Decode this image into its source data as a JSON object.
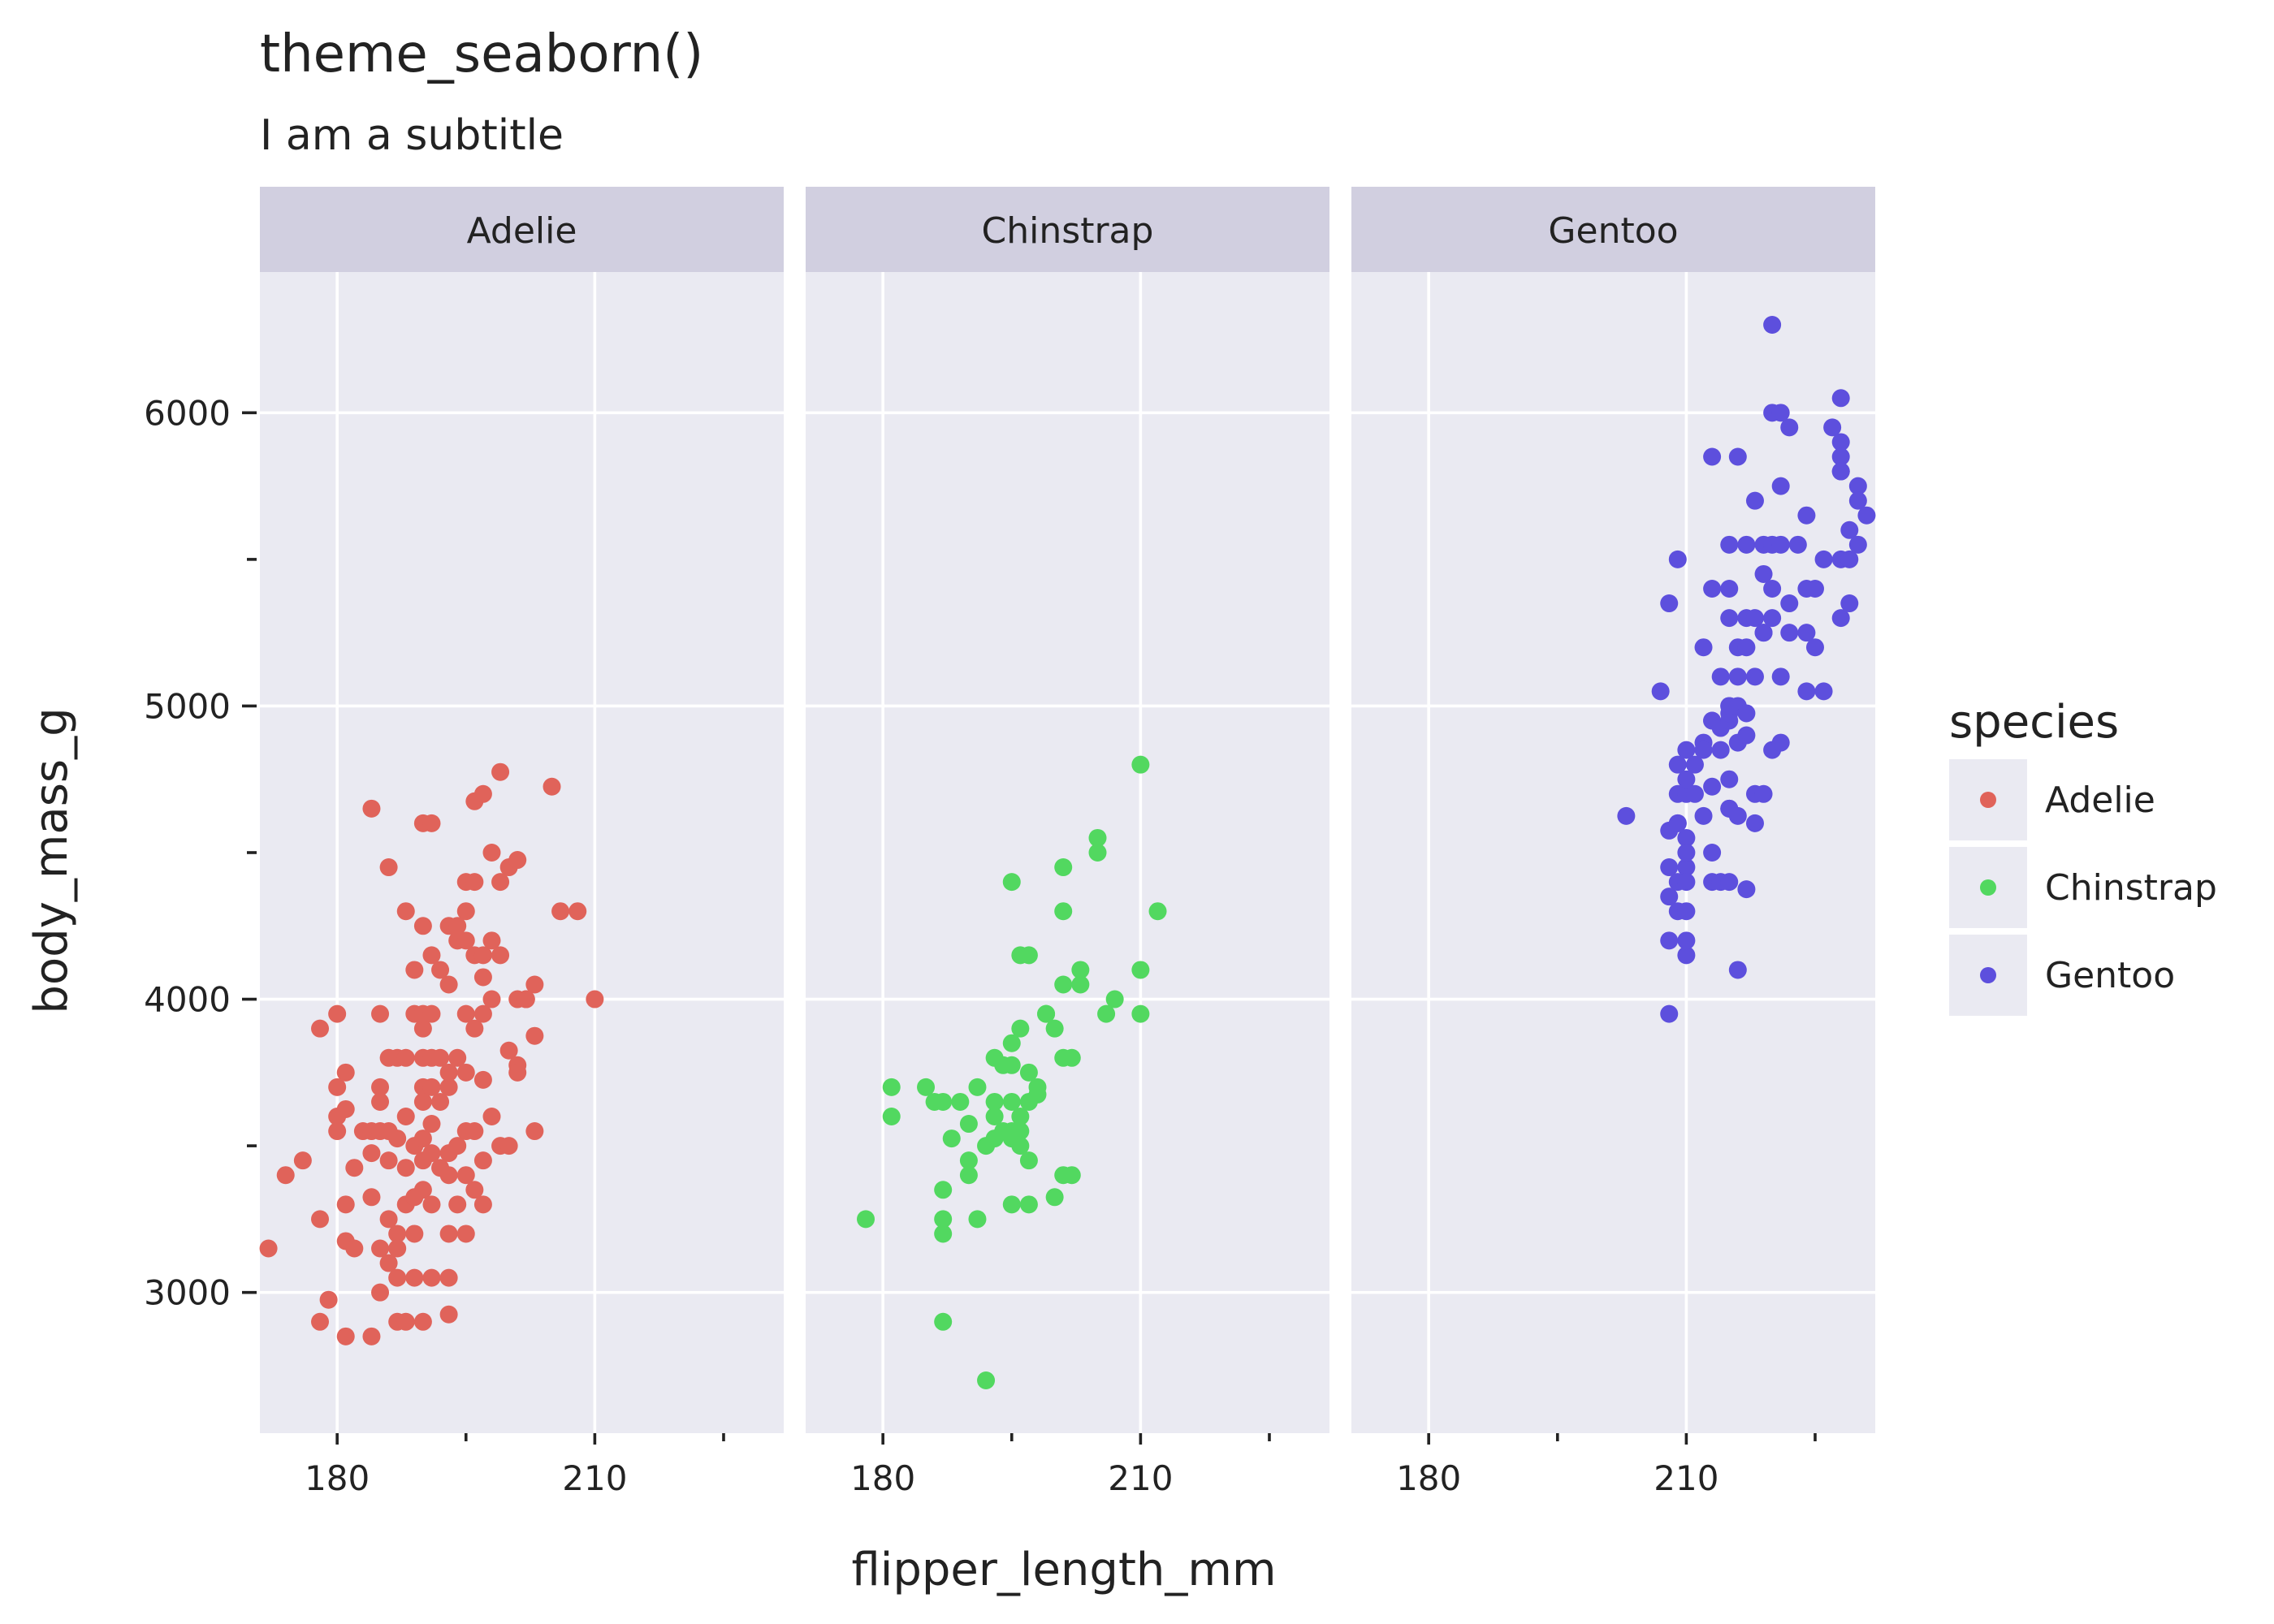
{
  "chart_data": {
    "type": "scatter",
    "title": "theme_seaborn()",
    "subtitle": "I am a subtitle",
    "xlabel": "flipper_length_mm",
    "ylabel": "body_mass_g",
    "xlim": [
      171,
      232
    ],
    "ylim": [
      2520,
      6480
    ],
    "x_ticks": [
      180,
      210
    ],
    "x_minor_ticks": [
      195,
      225
    ],
    "y_ticks": [
      3000,
      4000,
      5000,
      6000
    ],
    "y_minor_ticks": [
      3500,
      4500,
      5500
    ],
    "facets": [
      "Adelie",
      "Chinstrap",
      "Gentoo"
    ],
    "legend": {
      "title": "species",
      "position": "right",
      "entries": [
        "Adelie",
        "Chinstrap",
        "Gentoo"
      ]
    },
    "series": [
      {
        "name": "Adelie",
        "color": "#e0635a",
        "points": [
          [
            172,
            3150
          ],
          [
            174,
            3400
          ],
          [
            176,
            3450
          ],
          [
            178,
            3250
          ],
          [
            178,
            2900
          ],
          [
            178,
            3900
          ],
          [
            179,
            2975
          ],
          [
            180,
            3550
          ],
          [
            180,
            3600
          ],
          [
            180,
            3700
          ],
          [
            180,
            3950
          ],
          [
            181,
            3625
          ],
          [
            181,
            3750
          ],
          [
            181,
            3300
          ],
          [
            181,
            3175
          ],
          [
            181,
            2850
          ],
          [
            182,
            3150
          ],
          [
            182,
            3425
          ],
          [
            183,
            3550
          ],
          [
            184,
            3550
          ],
          [
            184,
            2850
          ],
          [
            184,
            4650
          ],
          [
            184,
            3325
          ],
          [
            184,
            3475
          ],
          [
            185,
            3700
          ],
          [
            185,
            3650
          ],
          [
            185,
            3150
          ],
          [
            185,
            3950
          ],
          [
            185,
            3550
          ],
          [
            185,
            3000
          ],
          [
            186,
            3800
          ],
          [
            186,
            3450
          ],
          [
            186,
            3100
          ],
          [
            186,
            3550
          ],
          [
            186,
            4450
          ],
          [
            186,
            3250
          ],
          [
            187,
            3200
          ],
          [
            187,
            3800
          ],
          [
            187,
            3525
          ],
          [
            187,
            3050
          ],
          [
            187,
            3150
          ],
          [
            187,
            2900
          ],
          [
            188,
            3300
          ],
          [
            188,
            3800
          ],
          [
            188,
            3600
          ],
          [
            188,
            2900
          ],
          [
            188,
            4300
          ],
          [
            188,
            3425
          ],
          [
            189,
            3200
          ],
          [
            189,
            3500
          ],
          [
            189,
            3050
          ],
          [
            189,
            4100
          ],
          [
            189,
            3950
          ],
          [
            189,
            3325
          ],
          [
            190,
            3800
          ],
          [
            190,
            3450
          ],
          [
            190,
            4600
          ],
          [
            190,
            3700
          ],
          [
            190,
            3900
          ],
          [
            190,
            4250
          ],
          [
            190,
            3950
          ],
          [
            190,
            3350
          ],
          [
            190,
            2900
          ],
          [
            190,
            3525
          ],
          [
            190,
            3650
          ],
          [
            191,
            3050
          ],
          [
            191,
            3700
          ],
          [
            191,
            3475
          ],
          [
            191,
            3950
          ],
          [
            191,
            3575
          ],
          [
            191,
            3800
          ],
          [
            191,
            4600
          ],
          [
            191,
            4150
          ],
          [
            191,
            3300
          ],
          [
            192,
            3425
          ],
          [
            192,
            4100
          ],
          [
            192,
            3650
          ],
          [
            192,
            3800
          ],
          [
            193,
            3050
          ],
          [
            193,
            3700
          ],
          [
            193,
            3475
          ],
          [
            193,
            3200
          ],
          [
            193,
            3400
          ],
          [
            193,
            4050
          ],
          [
            193,
            2925
          ],
          [
            193,
            4250
          ],
          [
            193,
            3750
          ],
          [
            194,
            3300
          ],
          [
            194,
            4200
          ],
          [
            194,
            3500
          ],
          [
            194,
            3800
          ],
          [
            194,
            4250
          ],
          [
            195,
            3750
          ],
          [
            195,
            3200
          ],
          [
            195,
            4400
          ],
          [
            195,
            4300
          ],
          [
            195,
            4200
          ],
          [
            195,
            3550
          ],
          [
            195,
            3400
          ],
          [
            195,
            3950
          ],
          [
            196,
            4675
          ],
          [
            196,
            3550
          ],
          [
            196,
            4150
          ],
          [
            196,
            3350
          ],
          [
            196,
            3900
          ],
          [
            196,
            4400
          ],
          [
            197,
            3300
          ],
          [
            197,
            4700
          ],
          [
            197,
            4150
          ],
          [
            197,
            4075
          ],
          [
            197,
            3950
          ],
          [
            197,
            3725
          ],
          [
            197,
            3450
          ],
          [
            198,
            4000
          ],
          [
            198,
            3600
          ],
          [
            198,
            4500
          ],
          [
            198,
            4200
          ],
          [
            199,
            4775
          ],
          [
            199,
            3500
          ],
          [
            199,
            4400
          ],
          [
            199,
            4150
          ],
          [
            200,
            4450
          ],
          [
            200,
            3825
          ],
          [
            200,
            3500
          ],
          [
            201,
            4000
          ],
          [
            201,
            4475
          ],
          [
            201,
            3775
          ],
          [
            201,
            3750
          ],
          [
            202,
            4000
          ],
          [
            202,
            4000
          ],
          [
            203,
            3875
          ],
          [
            203,
            4050
          ],
          [
            203,
            3550
          ],
          [
            205,
            4725
          ],
          [
            206,
            4300
          ],
          [
            208,
            4300
          ],
          [
            210,
            4000
          ]
        ]
      },
      {
        "name": "Chinstrap",
        "color": "#52d860",
        "points": [
          [
            178,
            3250
          ],
          [
            181,
            3700
          ],
          [
            181,
            3600
          ],
          [
            185,
            3700
          ],
          [
            186,
            3650
          ],
          [
            187,
            3200
          ],
          [
            187,
            3250
          ],
          [
            187,
            3350
          ],
          [
            187,
            2900
          ],
          [
            187,
            3650
          ],
          [
            188,
            3525
          ],
          [
            189,
            3650
          ],
          [
            190,
            3575
          ],
          [
            190,
            3400
          ],
          [
            190,
            3450
          ],
          [
            191,
            3700
          ],
          [
            191,
            3250
          ],
          [
            192,
            3500
          ],
          [
            192,
            2700
          ],
          [
            193,
            3650
          ],
          [
            193,
            3600
          ],
          [
            193,
            3800
          ],
          [
            193,
            3525
          ],
          [
            194,
            3775
          ],
          [
            194,
            3550
          ],
          [
            195,
            3550
          ],
          [
            195,
            3525
          ],
          [
            195,
            3850
          ],
          [
            195,
            3650
          ],
          [
            195,
            3300
          ],
          [
            195,
            3775
          ],
          [
            195,
            4400
          ],
          [
            196,
            3600
          ],
          [
            196,
            3500
          ],
          [
            196,
            3550
          ],
          [
            196,
            3900
          ],
          [
            196,
            4150
          ],
          [
            197,
            3650
          ],
          [
            197,
            3750
          ],
          [
            197,
            3450
          ],
          [
            197,
            4150
          ],
          [
            197,
            3300
          ],
          [
            198,
            3700
          ],
          [
            198,
            3675
          ],
          [
            199,
            3950
          ],
          [
            199,
            3950
          ],
          [
            200,
            3900
          ],
          [
            200,
            3325
          ],
          [
            201,
            3800
          ],
          [
            201,
            3400
          ],
          [
            201,
            4450
          ],
          [
            201,
            4050
          ],
          [
            201,
            4300
          ],
          [
            202,
            3800
          ],
          [
            202,
            3400
          ],
          [
            203,
            4050
          ],
          [
            203,
            4100
          ],
          [
            205,
            4550
          ],
          [
            205,
            4500
          ],
          [
            206,
            3950
          ],
          [
            207,
            4000
          ],
          [
            210,
            4800
          ],
          [
            210,
            4100
          ],
          [
            210,
            3950
          ],
          [
            212,
            4300
          ]
        ]
      },
      {
        "name": "Gentoo",
        "color": "#5d4fdd",
        "points": [
          [
            203,
            4625
          ],
          [
            207,
            5050
          ],
          [
            208,
            3950
          ],
          [
            208,
            4575
          ],
          [
            208,
            4450
          ],
          [
            208,
            4200
          ],
          [
            208,
            4350
          ],
          [
            208,
            5350
          ],
          [
            209,
            4300
          ],
          [
            209,
            4600
          ],
          [
            209,
            4400
          ],
          [
            209,
            4800
          ],
          [
            209,
            4700
          ],
          [
            209,
            5500
          ],
          [
            209,
            4600
          ],
          [
            210,
            4150
          ],
          [
            210,
            4450
          ],
          [
            210,
            4550
          ],
          [
            210,
            4200
          ],
          [
            210,
            4300
          ],
          [
            210,
            4700
          ],
          [
            210,
            4400
          ],
          [
            210,
            4850
          ],
          [
            210,
            4750
          ],
          [
            210,
            4500
          ],
          [
            211,
            4800
          ],
          [
            211,
            4700
          ],
          [
            212,
            4875
          ],
          [
            212,
            4625
          ],
          [
            212,
            4850
          ],
          [
            212,
            5200
          ],
          [
            213,
            4950
          ],
          [
            213,
            4400
          ],
          [
            213,
            4950
          ],
          [
            213,
            4725
          ],
          [
            213,
            4500
          ],
          [
            213,
            5400
          ],
          [
            213,
            5850
          ],
          [
            214,
            4850
          ],
          [
            214,
            4400
          ],
          [
            214,
            4925
          ],
          [
            214,
            5100
          ],
          [
            215,
            4650
          ],
          [
            215,
            4950
          ],
          [
            215,
            5300
          ],
          [
            215,
            5000
          ],
          [
            215,
            4400
          ],
          [
            215,
            5550
          ],
          [
            215,
            4975
          ],
          [
            215,
            5400
          ],
          [
            215,
            4750
          ],
          [
            215,
            4650
          ],
          [
            215,
            5000
          ],
          [
            216,
            4625
          ],
          [
            216,
            4100
          ],
          [
            216,
            5000
          ],
          [
            216,
            4875
          ],
          [
            216,
            5200
          ],
          [
            216,
            5100
          ],
          [
            216,
            5850
          ],
          [
            217,
            4375
          ],
          [
            217,
            5200
          ],
          [
            217,
            4975
          ],
          [
            217,
            5550
          ],
          [
            217,
            4900
          ],
          [
            217,
            5300
          ],
          [
            218,
            4600
          ],
          [
            218,
            5300
          ],
          [
            218,
            5100
          ],
          [
            218,
            5700
          ],
          [
            218,
            4700
          ],
          [
            219,
            5250
          ],
          [
            219,
            4700
          ],
          [
            219,
            5550
          ],
          [
            219,
            5450
          ],
          [
            219,
            5250
          ],
          [
            220,
            4850
          ],
          [
            220,
            5550
          ],
          [
            220,
            5300
          ],
          [
            220,
            6300
          ],
          [
            220,
            5400
          ],
          [
            221,
            5750
          ],
          [
            221,
            5100
          ],
          [
            221,
            4875
          ],
          [
            221,
            5550
          ],
          [
            222,
            5950
          ],
          [
            222,
            5350
          ],
          [
            222,
            5250
          ],
          [
            223,
            5550
          ],
          [
            224,
            5650
          ],
          [
            224,
            5250
          ],
          [
            224,
            5400
          ],
          [
            224,
            5050
          ],
          [
            225,
            5400
          ],
          [
            225,
            5200
          ],
          [
            226,
            5500
          ],
          [
            226,
            5050
          ],
          [
            227,
            5950
          ],
          [
            228,
            5900
          ],
          [
            228,
            5500
          ],
          [
            228,
            6050
          ],
          [
            228,
            5300
          ],
          [
            228,
            5850
          ],
          [
            228,
            5800
          ],
          [
            228,
            5800
          ],
          [
            229,
            5600
          ],
          [
            229,
            5350
          ],
          [
            229,
            5500
          ],
          [
            230,
            5750
          ],
          [
            230,
            5700
          ],
          [
            230,
            5550
          ],
          [
            231,
            5650
          ],
          [
            220,
            6000
          ],
          [
            221,
            6000
          ]
        ]
      }
    ]
  }
}
